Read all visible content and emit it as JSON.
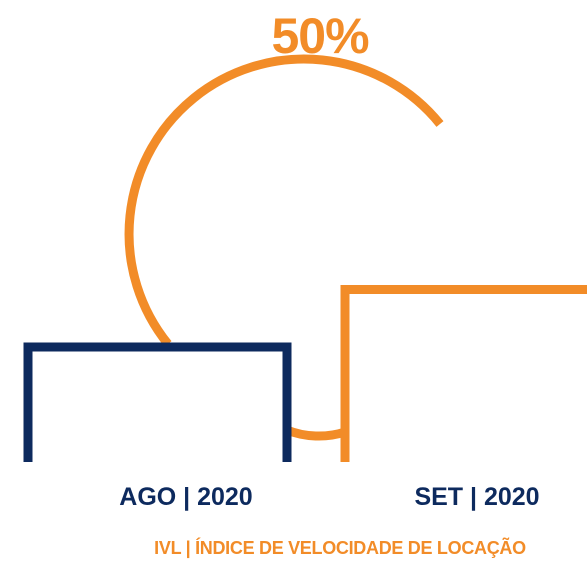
{
  "chart_data": {
    "type": "bar",
    "categories": [
      "AGO | 2020",
      "SET | 2020"
    ],
    "values": [
      100,
      150
    ],
    "change_label": "50%",
    "caption": "IVL | ÍNDICE DE VELOCIDADE DE LOCAÇÃO",
    "colors": {
      "ago": "#0d2a5e",
      "set": "#f28c28",
      "accent": "#f28c28"
    }
  }
}
